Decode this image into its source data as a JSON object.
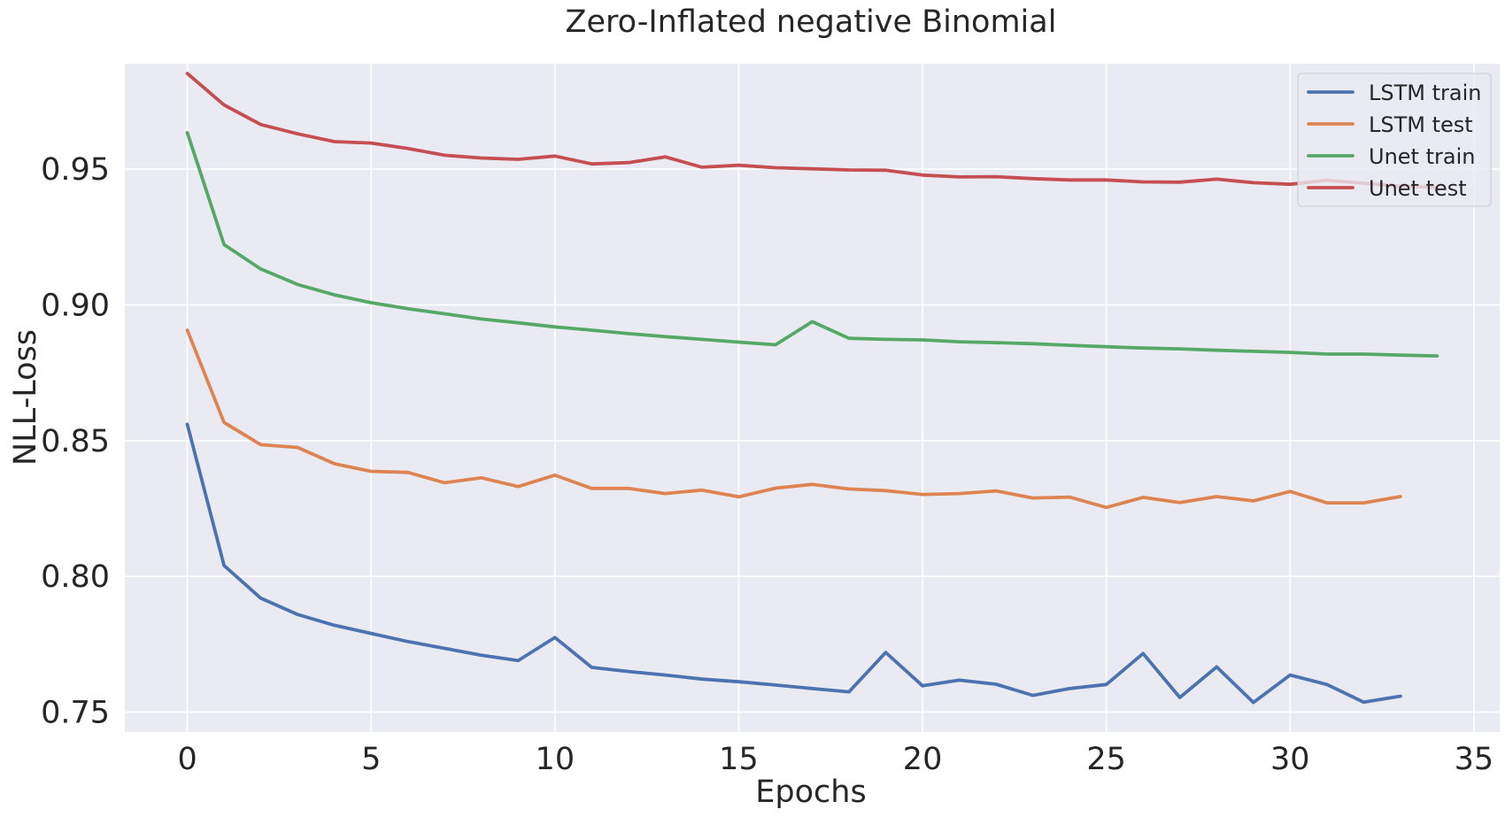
{
  "chart_data": {
    "type": "line",
    "title": "Zero-Inflated negative Binomial",
    "xlabel": "Epochs",
    "ylabel": "NLL-Loss",
    "xlim": [
      -1.7,
      35.7
    ],
    "ylim": [
      0.7427,
      0.9888
    ],
    "xticks": [
      0,
      5,
      10,
      15,
      20,
      25,
      30,
      35
    ],
    "yticks": [
      0.75,
      0.8,
      0.85,
      0.9,
      0.95
    ],
    "ytick_labels": [
      "0.75",
      "0.80",
      "0.85",
      "0.90",
      "0.95"
    ],
    "grid": true,
    "legend_position": "top-right",
    "background": "#eaeaf2",
    "series": [
      {
        "name": "LSTM train",
        "color": "#4c72b0",
        "x": [
          0,
          1,
          2,
          3,
          4,
          5,
          6,
          7,
          8,
          9,
          10,
          11,
          12,
          13,
          14,
          15,
          16,
          17,
          18,
          19,
          20,
          21,
          22,
          23,
          24,
          25,
          26,
          27,
          28,
          29,
          30,
          31,
          32,
          33
        ],
        "values": [
          0.856,
          0.804,
          0.792,
          0.786,
          0.782,
          0.779,
          0.776,
          0.7735,
          0.771,
          0.769,
          0.7775,
          0.7665,
          0.765,
          0.7637,
          0.7622,
          0.7612,
          0.76,
          0.7587,
          0.7575,
          0.772,
          0.7597,
          0.7618,
          0.7603,
          0.7562,
          0.7587,
          0.7602,
          0.7716,
          0.7554,
          0.7667,
          0.7536,
          0.7637,
          0.7602,
          0.7537,
          0.7559
        ]
      },
      {
        "name": "LSTM test",
        "color": "#dd8452",
        "x": [
          0,
          1,
          2,
          3,
          4,
          5,
          6,
          7,
          8,
          9,
          10,
          11,
          12,
          13,
          14,
          15,
          16,
          17,
          18,
          19,
          20,
          21,
          22,
          23,
          24,
          25,
          26,
          27,
          28,
          29,
          30,
          31,
          32,
          33
        ],
        "values": [
          0.8907,
          0.8567,
          0.8485,
          0.8475,
          0.8415,
          0.8387,
          0.8383,
          0.8345,
          0.8363,
          0.8331,
          0.8373,
          0.8324,
          0.8324,
          0.8305,
          0.8318,
          0.8293,
          0.8325,
          0.8339,
          0.8322,
          0.8316,
          0.8302,
          0.8305,
          0.8315,
          0.8289,
          0.8292,
          0.8254,
          0.8291,
          0.8272,
          0.8294,
          0.8278,
          0.8313,
          0.8271,
          0.8271,
          0.8294
        ]
      },
      {
        "name": "Unet train",
        "color": "#55a868",
        "x": [
          0,
          1,
          2,
          3,
          4,
          5,
          6,
          7,
          8,
          9,
          10,
          11,
          12,
          13,
          14,
          15,
          16,
          17,
          18,
          19,
          20,
          21,
          22,
          23,
          24,
          25,
          26,
          27,
          28,
          29,
          30,
          31,
          32,
          33,
          34
        ],
        "values": [
          0.9634,
          0.9222,
          0.9132,
          0.9075,
          0.9037,
          0.9008,
          0.8986,
          0.8967,
          0.8948,
          0.8934,
          0.8919,
          0.8907,
          0.8894,
          0.8883,
          0.8873,
          0.8863,
          0.8853,
          0.8938,
          0.8877,
          0.8873,
          0.8871,
          0.8864,
          0.8861,
          0.8857,
          0.8851,
          0.8846,
          0.8841,
          0.8838,
          0.8833,
          0.8829,
          0.8825,
          0.8819,
          0.8819,
          0.8815,
          0.8812
        ]
      },
      {
        "name": "Unet test",
        "color": "#c44e52",
        "x": [
          0,
          1,
          2,
          3,
          4,
          5,
          6,
          7,
          8,
          9,
          10,
          11,
          12,
          13,
          14,
          15,
          16,
          17,
          18,
          19,
          20,
          21,
          22,
          23,
          24,
          25,
          26,
          27,
          28,
          29,
          30,
          31,
          32,
          33,
          34
        ],
        "values": [
          0.9852,
          0.9736,
          0.9664,
          0.963,
          0.9601,
          0.9596,
          0.9576,
          0.9551,
          0.9541,
          0.9536,
          0.9548,
          0.9519,
          0.9524,
          0.9545,
          0.9507,
          0.9514,
          0.9505,
          0.9501,
          0.9497,
          0.9496,
          0.9478,
          0.9471,
          0.9472,
          0.9465,
          0.946,
          0.946,
          0.9453,
          0.9452,
          0.9463,
          0.945,
          0.9444,
          0.9459,
          0.9448,
          0.9437,
          0.9433
        ]
      }
    ]
  }
}
